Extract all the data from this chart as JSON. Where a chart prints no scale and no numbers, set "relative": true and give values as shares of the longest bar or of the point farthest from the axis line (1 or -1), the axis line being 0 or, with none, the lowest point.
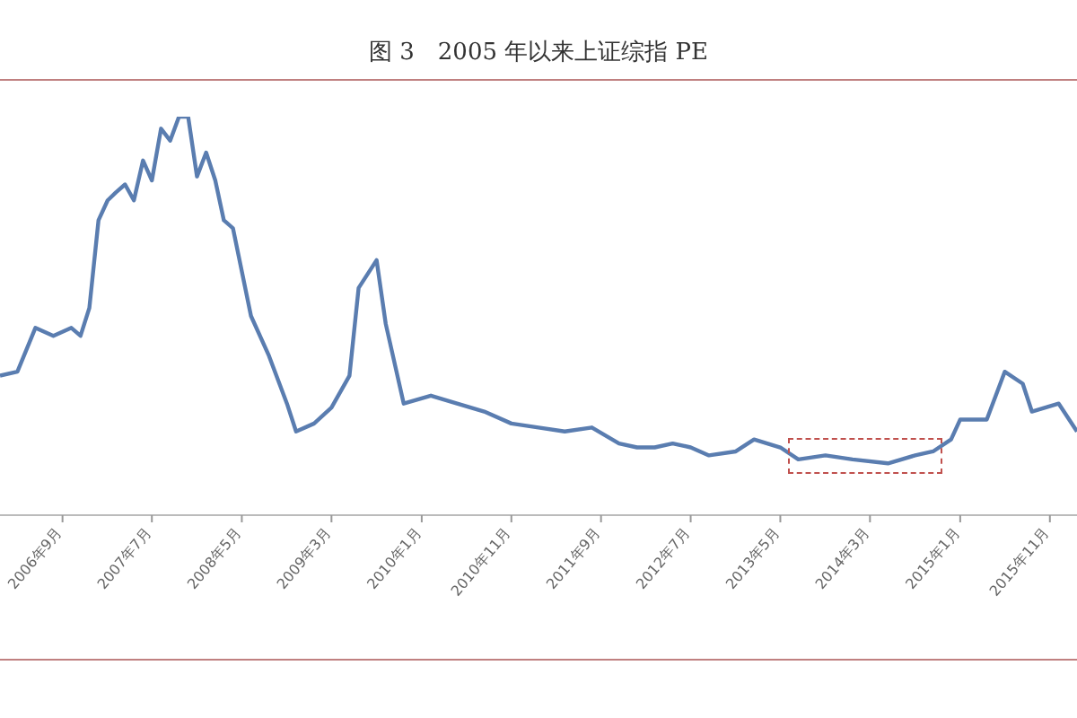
{
  "chart_data": {
    "type": "line",
    "title": "图 3　2005 年以来上证综指 PE",
    "relative": true,
    "x": [
      "2006-02",
      "2006-04",
      "2006-06",
      "2006-08",
      "2006-10",
      "2006-11",
      "2006-12",
      "2007-01",
      "2007-02",
      "2007-03",
      "2007-04",
      "2007-05",
      "2007-06",
      "2007-07",
      "2007-08",
      "2007-09",
      "2007-10",
      "2007-11",
      "2007-12",
      "2008-01",
      "2008-02",
      "2008-03",
      "2008-04",
      "2008-06",
      "2008-08",
      "2008-10",
      "2008-11",
      "2009-01",
      "2009-03",
      "2009-05",
      "2009-06",
      "2009-08",
      "2009-09",
      "2009-11",
      "2010-02",
      "2010-05",
      "2010-08",
      "2010-11",
      "2011-02",
      "2011-05",
      "2011-08",
      "2011-11",
      "2012-01",
      "2012-03",
      "2012-05",
      "2012-07",
      "2012-09",
      "2012-12",
      "2013-02",
      "2013-05",
      "2013-07",
      "2013-10",
      "2014-01",
      "2014-05",
      "2014-08",
      "2014-10",
      "2014-12",
      "2015-01",
      "2015-04",
      "2015-06",
      "2015-08",
      "2015-09",
      "2015-12",
      "2016-02"
    ],
    "series": [
      {
        "color": "#5a7db0",
        "values": [
          0.35,
          0.36,
          0.47,
          0.45,
          0.47,
          0.45,
          0.52,
          0.74,
          0.79,
          0.81,
          0.83,
          0.79,
          0.89,
          0.84,
          0.97,
          0.94,
          1.0,
          1.0,
          0.85,
          0.91,
          0.84,
          0.74,
          0.72,
          0.5,
          0.4,
          0.28,
          0.21,
          0.23,
          0.27,
          0.35,
          0.57,
          0.64,
          0.48,
          0.28,
          0.3,
          0.28,
          0.26,
          0.23,
          0.22,
          0.21,
          0.22,
          0.18,
          0.17,
          0.17,
          0.18,
          0.17,
          0.15,
          0.16,
          0.19,
          0.17,
          0.14,
          0.15,
          0.14,
          0.13,
          0.15,
          0.16,
          0.19,
          0.24,
          0.24,
          0.36,
          0.33,
          0.26,
          0.28,
          0.21
        ]
      }
    ],
    "xlim": [
      "2006-02",
      "2016-02"
    ],
    "xticks": [
      {
        "value": "2006-09",
        "label": "2006年9月"
      },
      {
        "value": "2007-07",
        "label": "2007年7月"
      },
      {
        "value": "2008-05",
        "label": "2008年5月"
      },
      {
        "value": "2009-03",
        "label": "2009年3月"
      },
      {
        "value": "2010-01",
        "label": "2010年1月"
      },
      {
        "value": "2010-11",
        "label": "2010年11月"
      },
      {
        "value": "2011-09",
        "label": "2011年9月"
      },
      {
        "value": "2012-07",
        "label": "2012年7月"
      },
      {
        "value": "2013-05",
        "label": "2013年5月"
      },
      {
        "value": "2014-03",
        "label": "2014年3月"
      },
      {
        "value": "2015-01",
        "label": "2015年1月"
      },
      {
        "value": "2015-11",
        "label": "2015年11月"
      }
    ],
    "grid": false,
    "legend": false,
    "marker": "none",
    "line_style": "solid"
  }
}
